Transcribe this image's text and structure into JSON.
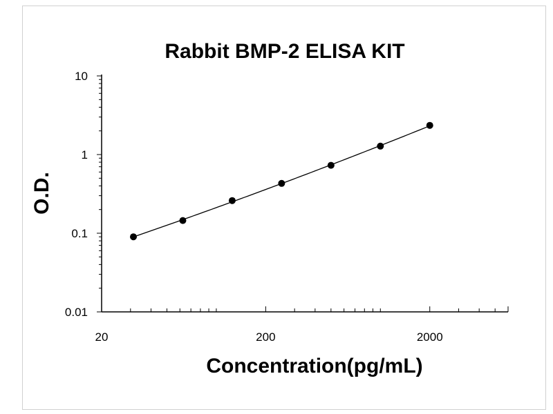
{
  "chart_data": {
    "type": "scatter",
    "title": "Rabbit BMP-2 ELISA KIT",
    "xlabel": "Concentration(pg/mL)",
    "ylabel": "O.D.",
    "x_scale": "log",
    "y_scale": "log",
    "xlim": [
      20,
      6000
    ],
    "ylim": [
      0.01,
      10
    ],
    "x_tick_labels": [
      "20",
      "200",
      "2000"
    ],
    "y_tick_labels": [
      "10",
      "1",
      "0.1",
      "0.01"
    ],
    "grid": false,
    "series": [
      {
        "x": [
          31.25,
          62.5,
          125,
          250,
          500,
          1000,
          2000
        ],
        "y": [
          0.09,
          0.145,
          0.26,
          0.43,
          0.73,
          1.28,
          2.35
        ]
      }
    ],
    "fit_curve": true
  },
  "colors": {
    "marks": "#000000",
    "axis": "#000000",
    "border": "#d0d0d0"
  }
}
